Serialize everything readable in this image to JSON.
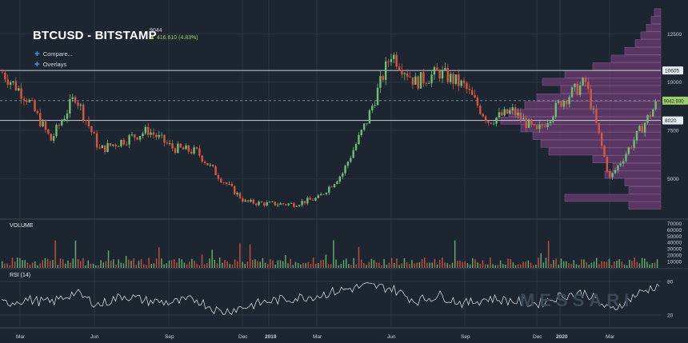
{
  "header": {
    "title": "BTCUSD - BITSTAMP",
    "price": "9044",
    "change_icon": "triangle-up-icon",
    "change": "416.610 (4.83%)"
  },
  "toolbar": {
    "compare_label": "Compare...",
    "overlays_label": "Overlays"
  },
  "panes": {
    "volume_label": "VOLUME",
    "rsi_label": "RSI (14)",
    "watermark": "MESSARI"
  },
  "colors": {
    "background": "#1c2530",
    "up": "#6fbf73",
    "down": "#d9573f",
    "volume_profile": "#6b3d73",
    "rsi_line": "#e8ecf0",
    "accent": "#3f8cd6",
    "price_tag": "#9ccf6a"
  },
  "chart_data": {
    "type": "line",
    "title": "BTCUSD - BITSTAMP",
    "price_axis": {
      "ticks": [
        5000,
        7500,
        10000,
        12500
      ],
      "marked_levels": [
        {
          "label": "10605",
          "value": 10605
        },
        {
          "label": "8020",
          "value": 8020
        }
      ],
      "current_price_tag": "9042.930",
      "current_price": 9042.93,
      "range": [
        3000,
        14000
      ]
    },
    "x_axis": {
      "tick_labels": [
        "Mar",
        "Jun",
        "Sep",
        "Dec",
        "2019",
        "Mar",
        "Jun",
        "Sep",
        "Dec",
        "2020",
        "Mar"
      ]
    },
    "price_series": {
      "x": [
        "2018-02",
        "2018-03",
        "2018-04",
        "2018-05",
        "2018-06",
        "2018-07",
        "2018-08",
        "2018-09",
        "2018-10",
        "2018-11",
        "2018-12",
        "2019-01",
        "2019-02",
        "2019-03",
        "2019-04",
        "2019-05",
        "2019-06",
        "2019-07",
        "2019-08",
        "2019-09",
        "2019-10",
        "2019-11",
        "2019-12",
        "2020-01",
        "2020-02",
        "2020-03",
        "2020-04",
        "2020-05"
      ],
      "y": [
        10500,
        9200,
        7000,
        9300,
        6500,
        7000,
        7500,
        6600,
        6400,
        5000,
        3800,
        3700,
        3700,
        4000,
        5300,
        8000,
        11500,
        10000,
        10500,
        9800,
        8000,
        8500,
        7400,
        9000,
        10000,
        5000,
        7000,
        9044
      ]
    },
    "volume_axis": {
      "ticks": [
        10000,
        20000,
        30000,
        40000,
        50000,
        60000,
        70000
      ]
    },
    "rsi_axis": {
      "ticks": [
        20,
        80
      ]
    },
    "rsi_series": {
      "x": [
        "2018-02",
        "2018-03",
        "2018-04",
        "2018-05",
        "2018-06",
        "2018-07",
        "2018-08",
        "2018-09",
        "2018-10",
        "2018-11",
        "2018-12",
        "2019-01",
        "2019-02",
        "2019-03",
        "2019-04",
        "2019-05",
        "2019-06",
        "2019-07",
        "2019-08",
        "2019-09",
        "2019-10",
        "2019-11",
        "2019-12",
        "2020-01",
        "2020-02",
        "2020-03",
        "2020-04",
        "2020-05"
      ],
      "y": [
        40,
        48,
        42,
        60,
        38,
        55,
        45,
        42,
        48,
        25,
        35,
        45,
        50,
        55,
        65,
        72,
        68,
        45,
        55,
        40,
        50,
        45,
        40,
        55,
        60,
        28,
        55,
        75
      ]
    }
  }
}
